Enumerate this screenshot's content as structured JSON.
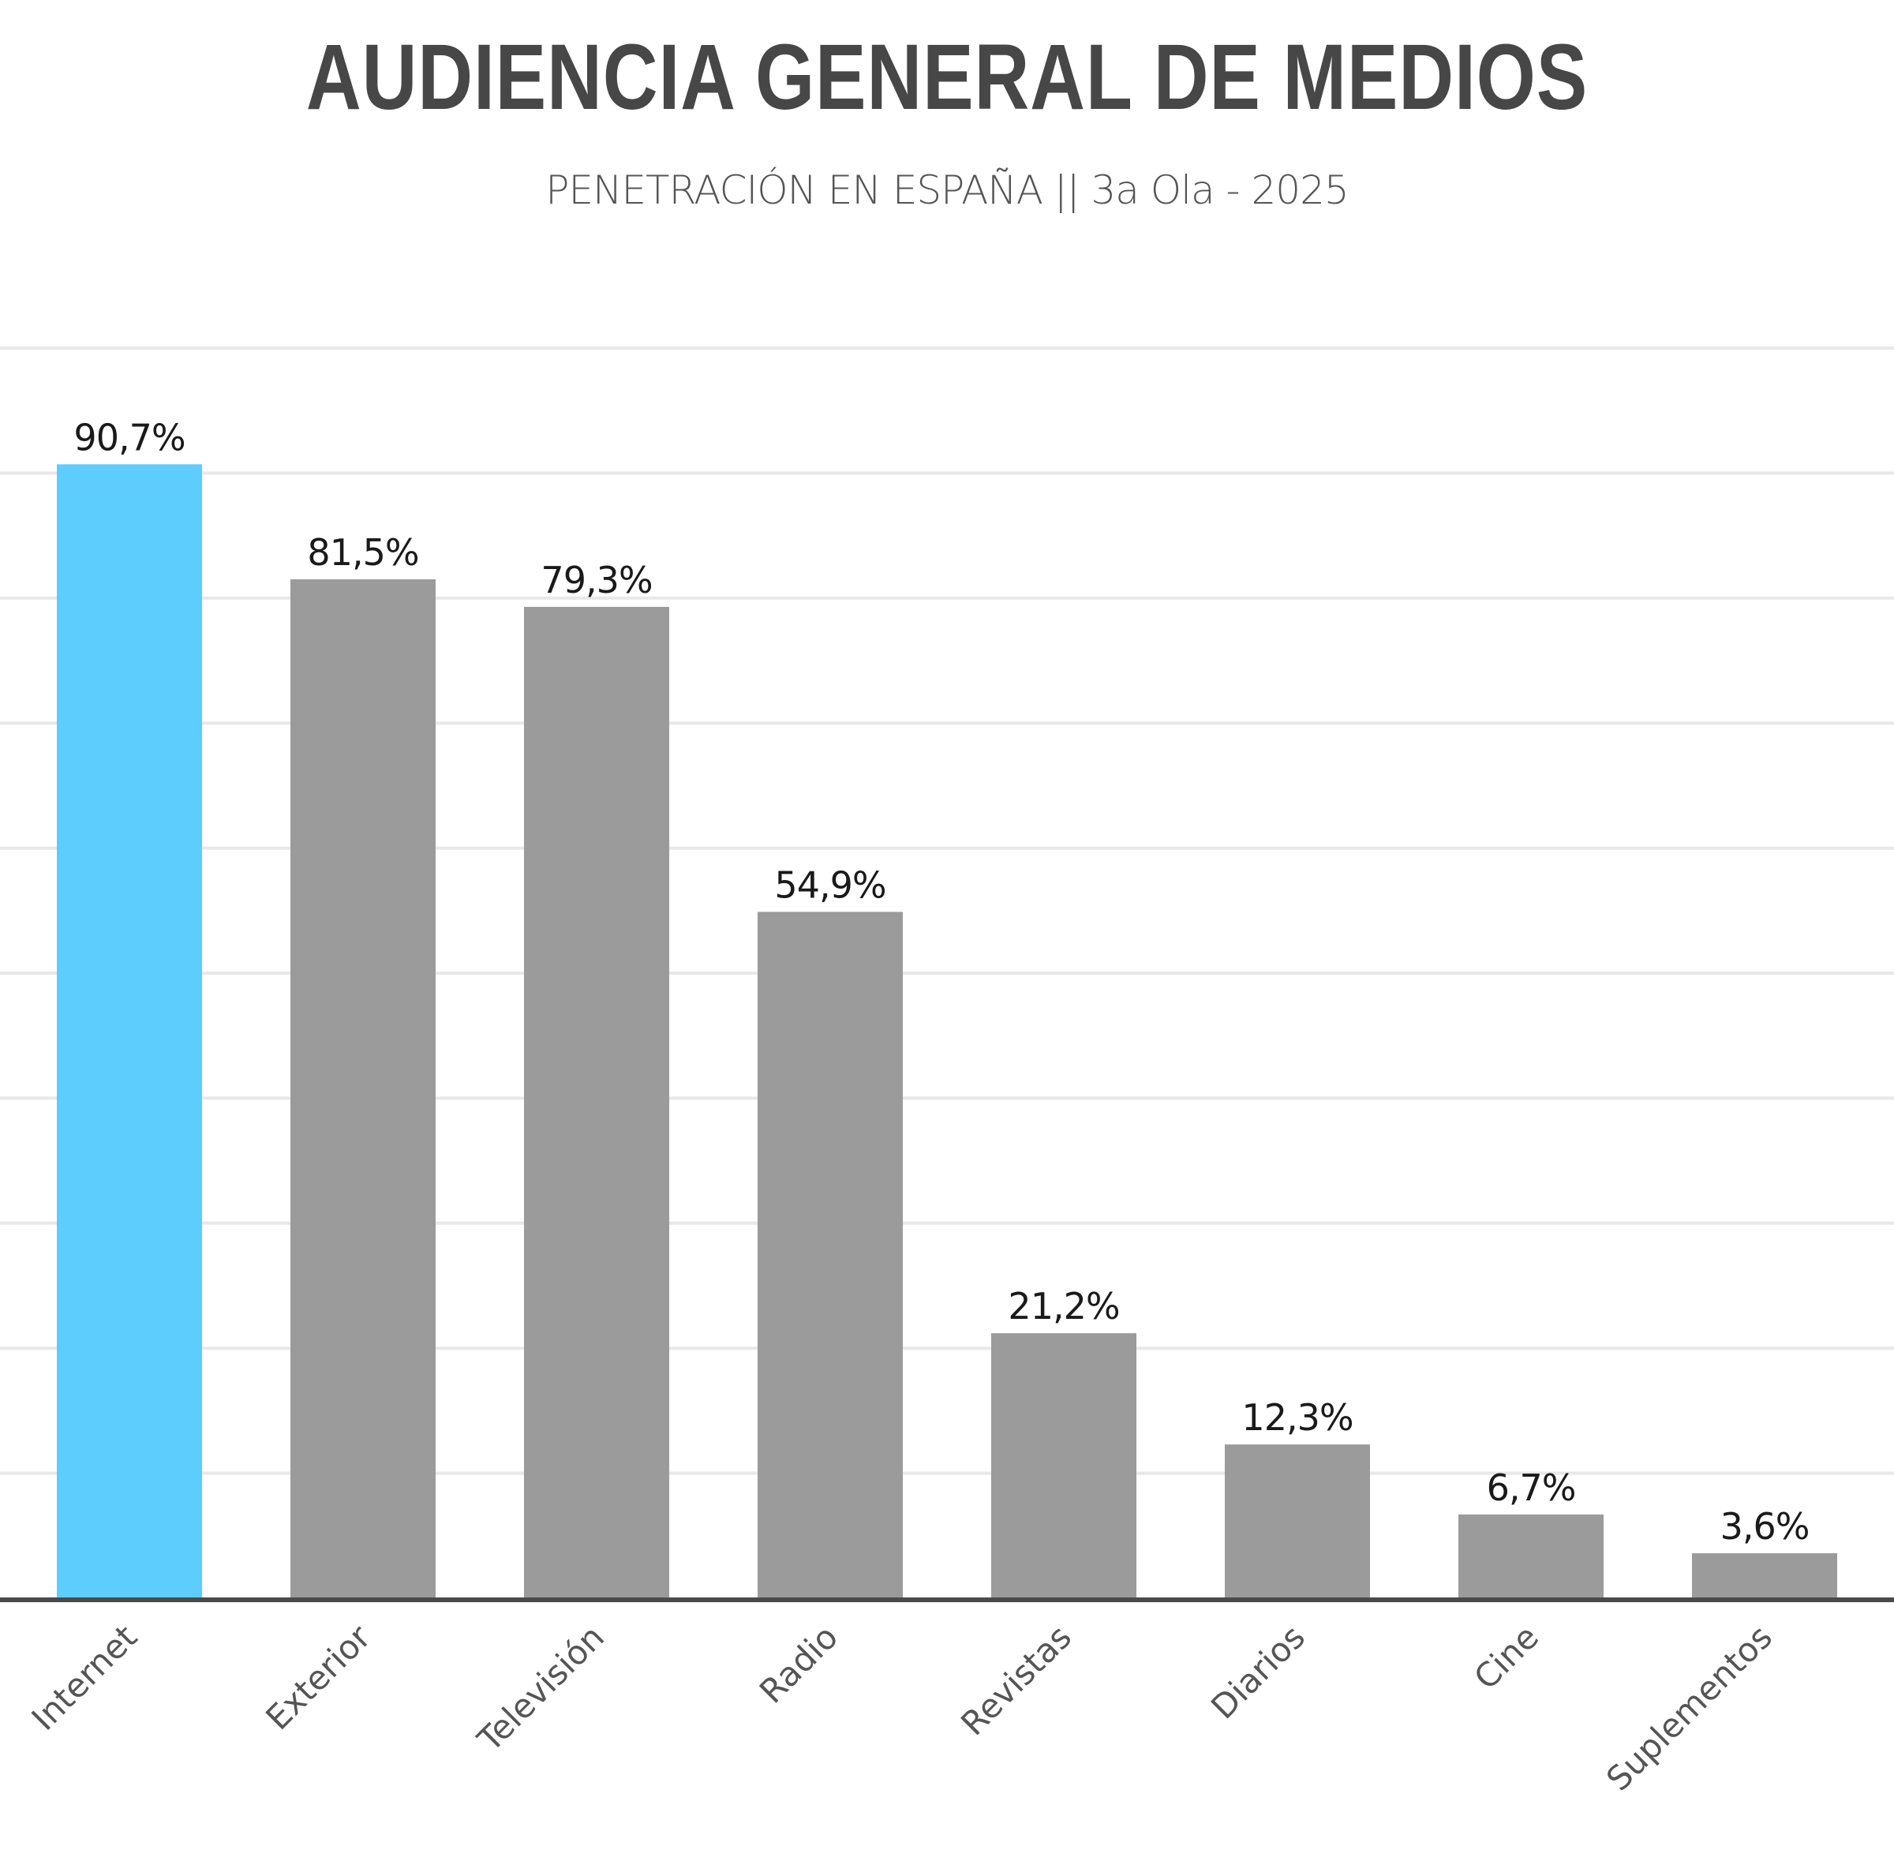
{
  "chart_data": {
    "type": "bar",
    "title": "AUDIENCIA GENERAL DE MEDIOS",
    "subtitle": "PENETRACIÓN EN ESPAÑA || 3a Ola - 2025",
    "categories": [
      "Internet",
      "Exterior",
      "Televisión",
      "Radio",
      "Revistas",
      "Diarios",
      "Cine",
      "Suplementos"
    ],
    "values": [
      90.7,
      81.5,
      79.3,
      54.9,
      21.2,
      12.3,
      6.7,
      3.6
    ],
    "value_labels": [
      "90,7%",
      "81,5%",
      "79,3%",
      "54,9%",
      "21,2%",
      "12,3%",
      "6,7%",
      "3,6%"
    ],
    "xlabel": "",
    "ylabel": "",
    "ylim": [
      0,
      100
    ],
    "grid": true,
    "grid_step": 10,
    "colors": {
      "highlight": "#5ccdfd",
      "default": "#9b9b9b",
      "grid": "#e8e8e8",
      "axis": "#4a4a4a"
    }
  }
}
